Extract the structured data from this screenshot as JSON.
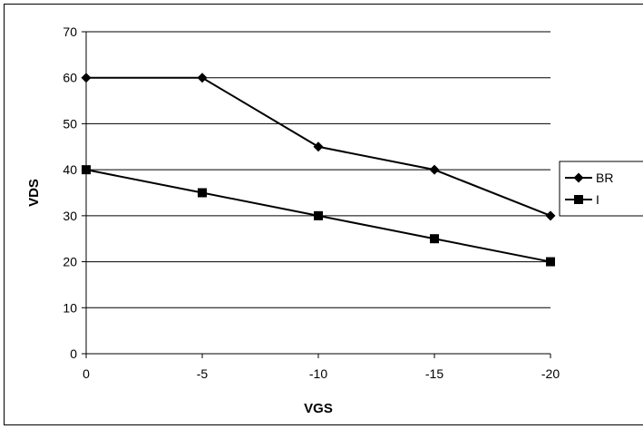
{
  "chart_data": {
    "type": "line",
    "title": "",
    "xlabel": "VGS",
    "ylabel": "VDS",
    "categories": [
      "0",
      "-5",
      "-10",
      "-15",
      "-20"
    ],
    "x": [
      0,
      -5,
      -10,
      -15,
      -20
    ],
    "ylim": [
      0,
      70
    ],
    "yticks": [
      0,
      10,
      20,
      30,
      40,
      50,
      60,
      70
    ],
    "grid": "horizontal",
    "legend_position": "right",
    "series": [
      {
        "name": "BR",
        "marker": "diamond",
        "color": "#000000",
        "values": [
          60,
          60,
          45,
          40,
          30
        ]
      },
      {
        "name": "I",
        "marker": "square",
        "color": "#000000",
        "values": [
          40,
          35,
          30,
          25,
          20
        ]
      }
    ]
  }
}
